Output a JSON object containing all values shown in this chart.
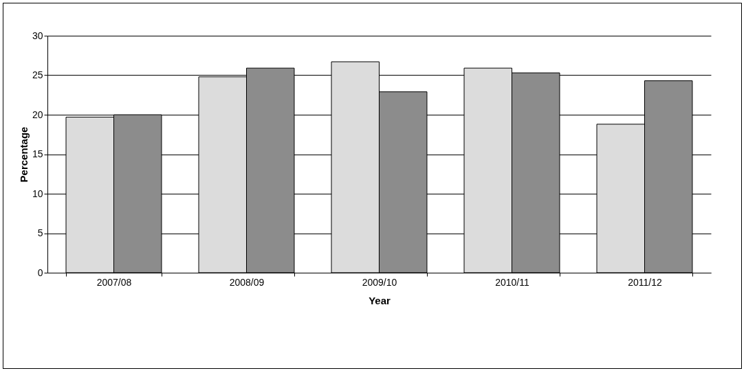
{
  "chart_data": {
    "type": "bar",
    "xlabel": "Year",
    "ylabel": "Percentage",
    "categories": [
      "2007/08",
      "2008/09",
      "2009/10",
      "2010/11",
      "2011/12"
    ],
    "series": [
      {
        "color": "#dcdcdc",
        "values": [
          19.7,
          24.8,
          26.7,
          25.9,
          18.8
        ]
      },
      {
        "color": "#8c8c8c",
        "values": [
          20.0,
          25.9,
          22.9,
          25.3,
          24.3
        ]
      }
    ],
    "ylim": [
      0,
      30
    ],
    "yticks": [
      0,
      5,
      10,
      15,
      20,
      25,
      30
    ],
    "grid": "y"
  }
}
